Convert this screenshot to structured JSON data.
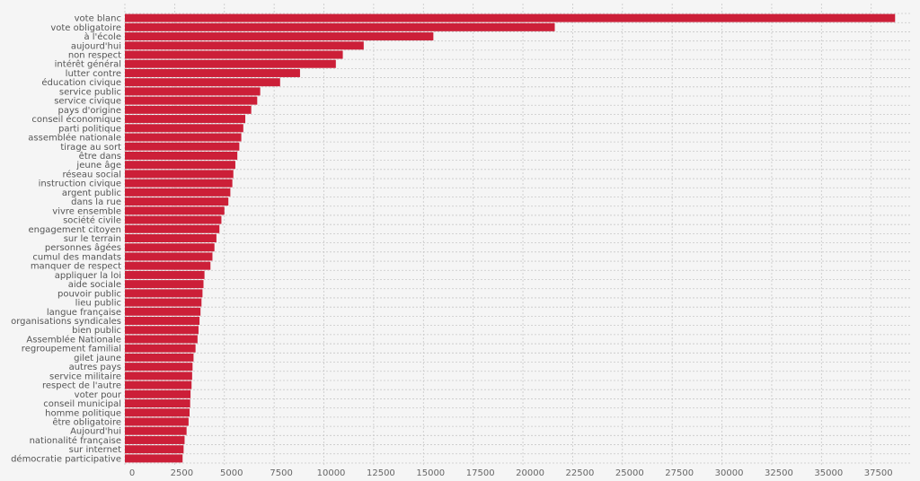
{
  "chart_data": {
    "type": "bar",
    "orientation": "horizontal",
    "title": "",
    "xlabel": "",
    "ylabel": "",
    "grid": true,
    "bar_color": "#cc1f38",
    "xlim": [
      0,
      39500
    ],
    "x_ticks": [
      0,
      2500,
      5000,
      7500,
      10000,
      12500,
      15000,
      17500,
      20000,
      22500,
      25000,
      27500,
      30000,
      32500,
      35000,
      37500
    ],
    "x_tick_labels": [
      "0",
      "2500",
      "5000",
      "7500",
      "10000",
      "12500",
      "15000",
      "17500",
      "20000",
      "22500",
      "25000",
      "27500",
      "30000",
      "32500",
      "35000",
      "37500"
    ],
    "categories": [
      "vote blanc",
      "vote obligatoire",
      "à l'école",
      "aujourd'hui",
      "non respect",
      "intérêt général",
      "lutter contre",
      "éducation civique",
      "service public",
      "service civique",
      "pays d'origine",
      "conseil économique",
      "parti politique",
      "assemblée nationale",
      "tirage au sort",
      "être dans",
      "jeune âge",
      "réseau social",
      "instruction civique",
      "argent public",
      "dans la rue",
      "vivre ensemble",
      "société civile",
      "engagement citoyen",
      "sur le terrain",
      "personnes âgées",
      "cumul des mandats",
      "manquer de respect",
      "appliquer la loi",
      "aide sociale",
      "pouvoir public",
      "lieu public",
      "langue française",
      "organisations syndicales",
      "bien public",
      "Assemblée Nationale",
      "regroupement familial",
      "gilet jaune",
      "autres pays",
      "service militaire",
      "respect de l'autre",
      "voter pour",
      "conseil municipal",
      "homme politique",
      "être obligatoire",
      "Aujourd'hui",
      "nationalité française",
      "sur internet",
      "démocratie participative"
    ],
    "values": [
      38700,
      21600,
      15500,
      12000,
      10950,
      10600,
      8800,
      7800,
      6800,
      6650,
      6350,
      6050,
      5950,
      5850,
      5750,
      5650,
      5550,
      5450,
      5400,
      5300,
      5200,
      5000,
      4850,
      4750,
      4600,
      4500,
      4400,
      4300,
      4000,
      3950,
      3900,
      3850,
      3800,
      3750,
      3700,
      3650,
      3550,
      3450,
      3400,
      3380,
      3350,
      3300,
      3280,
      3250,
      3200,
      3100,
      3000,
      2950,
      2900
    ]
  }
}
